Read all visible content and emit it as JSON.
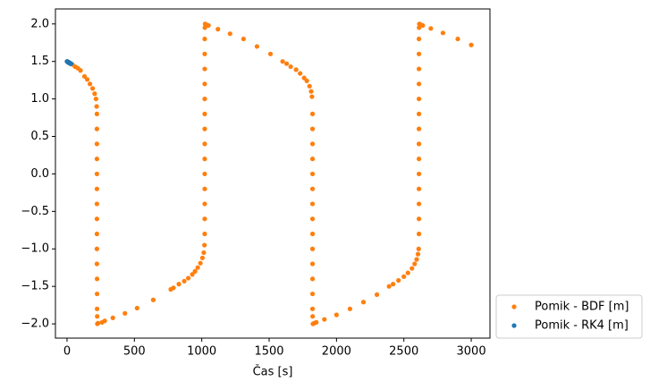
{
  "chart_data": {
    "type": "scatter",
    "xlabel": "Čas [s]",
    "xlim": [
      -86,
      3139
    ],
    "ylim": [
      -2.19,
      2.2
    ],
    "xticks": [
      0,
      500,
      1000,
      1500,
      2000,
      2500,
      3000
    ],
    "yticks": [
      {
        "value": -2,
        "label": "−2.0"
      },
      {
        "value": -1.5,
        "label": "−1.5"
      },
      {
        "value": -1,
        "label": "−1.0"
      },
      {
        "value": -0.5,
        "label": "−0.5"
      },
      {
        "value": 0,
        "label": "0.0"
      },
      {
        "value": 0.5,
        "label": "0.5"
      },
      {
        "value": 1,
        "label": "1.0"
      },
      {
        "value": 1.5,
        "label": "1.5"
      },
      {
        "value": 2,
        "label": "2.0"
      }
    ],
    "legend": "outside lower right",
    "series": [
      {
        "name": "Pomik - BDF [m]",
        "color": "#ff7f0e",
        "x": [
          0,
          10,
          20,
          40,
          60,
          80,
          100,
          130,
          150,
          170,
          190,
          205,
          215,
          220,
          222,
          222,
          222,
          222,
          222,
          222,
          222,
          222,
          222,
          222,
          222,
          223,
          223,
          223,
          224,
          225,
          230,
          260,
          280,
          340,
          430,
          520,
          640,
          770,
          790,
          830,
          870,
          900,
          930,
          950,
          970,
          990,
          1005,
          1015,
          1020,
          1022,
          1022,
          1022,
          1022,
          1022,
          1022,
          1022,
          1022,
          1022,
          1022,
          1022,
          1022,
          1022,
          1022,
          1023,
          1025,
          1035,
          1050,
          1120,
          1210,
          1310,
          1410,
          1510,
          1600,
          1630,
          1660,
          1700,
          1730,
          1760,
          1780,
          1800,
          1812,
          1818,
          1822,
          1822,
          1822,
          1822,
          1822,
          1822,
          1822,
          1822,
          1822,
          1822,
          1822,
          1822,
          1822,
          1822,
          1823,
          1825,
          1835,
          1850,
          1910,
          2000,
          2100,
          2200,
          2300,
          2390,
          2420,
          2460,
          2500,
          2530,
          2560,
          2580,
          2595,
          2605,
          2610,
          2612,
          2612,
          2612,
          2612,
          2612,
          2612,
          2612,
          2612,
          2612,
          2612,
          2612,
          2612,
          2612,
          2612,
          2613,
          2615,
          2625,
          2640,
          2700,
          2790,
          2900,
          3000
        ],
        "y": [
          1.5,
          1.49,
          1.48,
          1.46,
          1.43,
          1.41,
          1.38,
          1.3,
          1.26,
          1.2,
          1.14,
          1.07,
          1.0,
          0.9,
          0.8,
          0.6,
          0.4,
          0.2,
          0,
          -0.2,
          -0.4,
          -0.6,
          -0.8,
          -1,
          -1.2,
          -1.4,
          -1.6,
          -1.8,
          -1.9,
          -2.0,
          -1.99,
          -1.98,
          -1.96,
          -1.92,
          -1.86,
          -1.79,
          -1.68,
          -1.54,
          -1.52,
          -1.47,
          -1.43,
          -1.39,
          -1.34,
          -1.3,
          -1.25,
          -1.19,
          -1.12,
          -1.05,
          -0.95,
          -0.8,
          -0.6,
          -0.4,
          -0.2,
          0,
          0.2,
          0.4,
          0.6,
          0.8,
          1,
          1.2,
          1.4,
          1.6,
          1.8,
          1.95,
          2.0,
          1.99,
          1.98,
          1.93,
          1.87,
          1.8,
          1.7,
          1.6,
          1.5,
          1.47,
          1.43,
          1.39,
          1.34,
          1.28,
          1.24,
          1.17,
          1.1,
          1.03,
          0.8,
          0.6,
          0.4,
          0.2,
          0,
          -0.2,
          -0.4,
          -0.6,
          -0.8,
          -1,
          -1.2,
          -1.4,
          -1.6,
          -1.8,
          -1.9,
          -2.0,
          -1.99,
          -1.98,
          -1.94,
          -1.88,
          -1.8,
          -1.71,
          -1.61,
          -1.5,
          -1.47,
          -1.42,
          -1.37,
          -1.32,
          -1.26,
          -1.2,
          -1.14,
          -1.07,
          -1.0,
          -0.8,
          -0.6,
          -0.4,
          -0.2,
          0,
          0.2,
          0.4,
          0.6,
          0.8,
          1,
          1.2,
          1.4,
          1.6,
          1.8,
          1.95,
          2.0,
          1.99,
          1.98,
          1.94,
          1.88,
          1.8,
          1.72
        ]
      },
      {
        "name": "Pomik - RK4 [m]",
        "color": "#1f77b4",
        "x": [
          0,
          3,
          6,
          9,
          12,
          15,
          18,
          21,
          24,
          27,
          30
        ],
        "y": [
          1.5,
          1.5,
          1.49,
          1.49,
          1.49,
          1.48,
          1.48,
          1.48,
          1.47,
          1.47,
          1.47
        ]
      }
    ]
  }
}
